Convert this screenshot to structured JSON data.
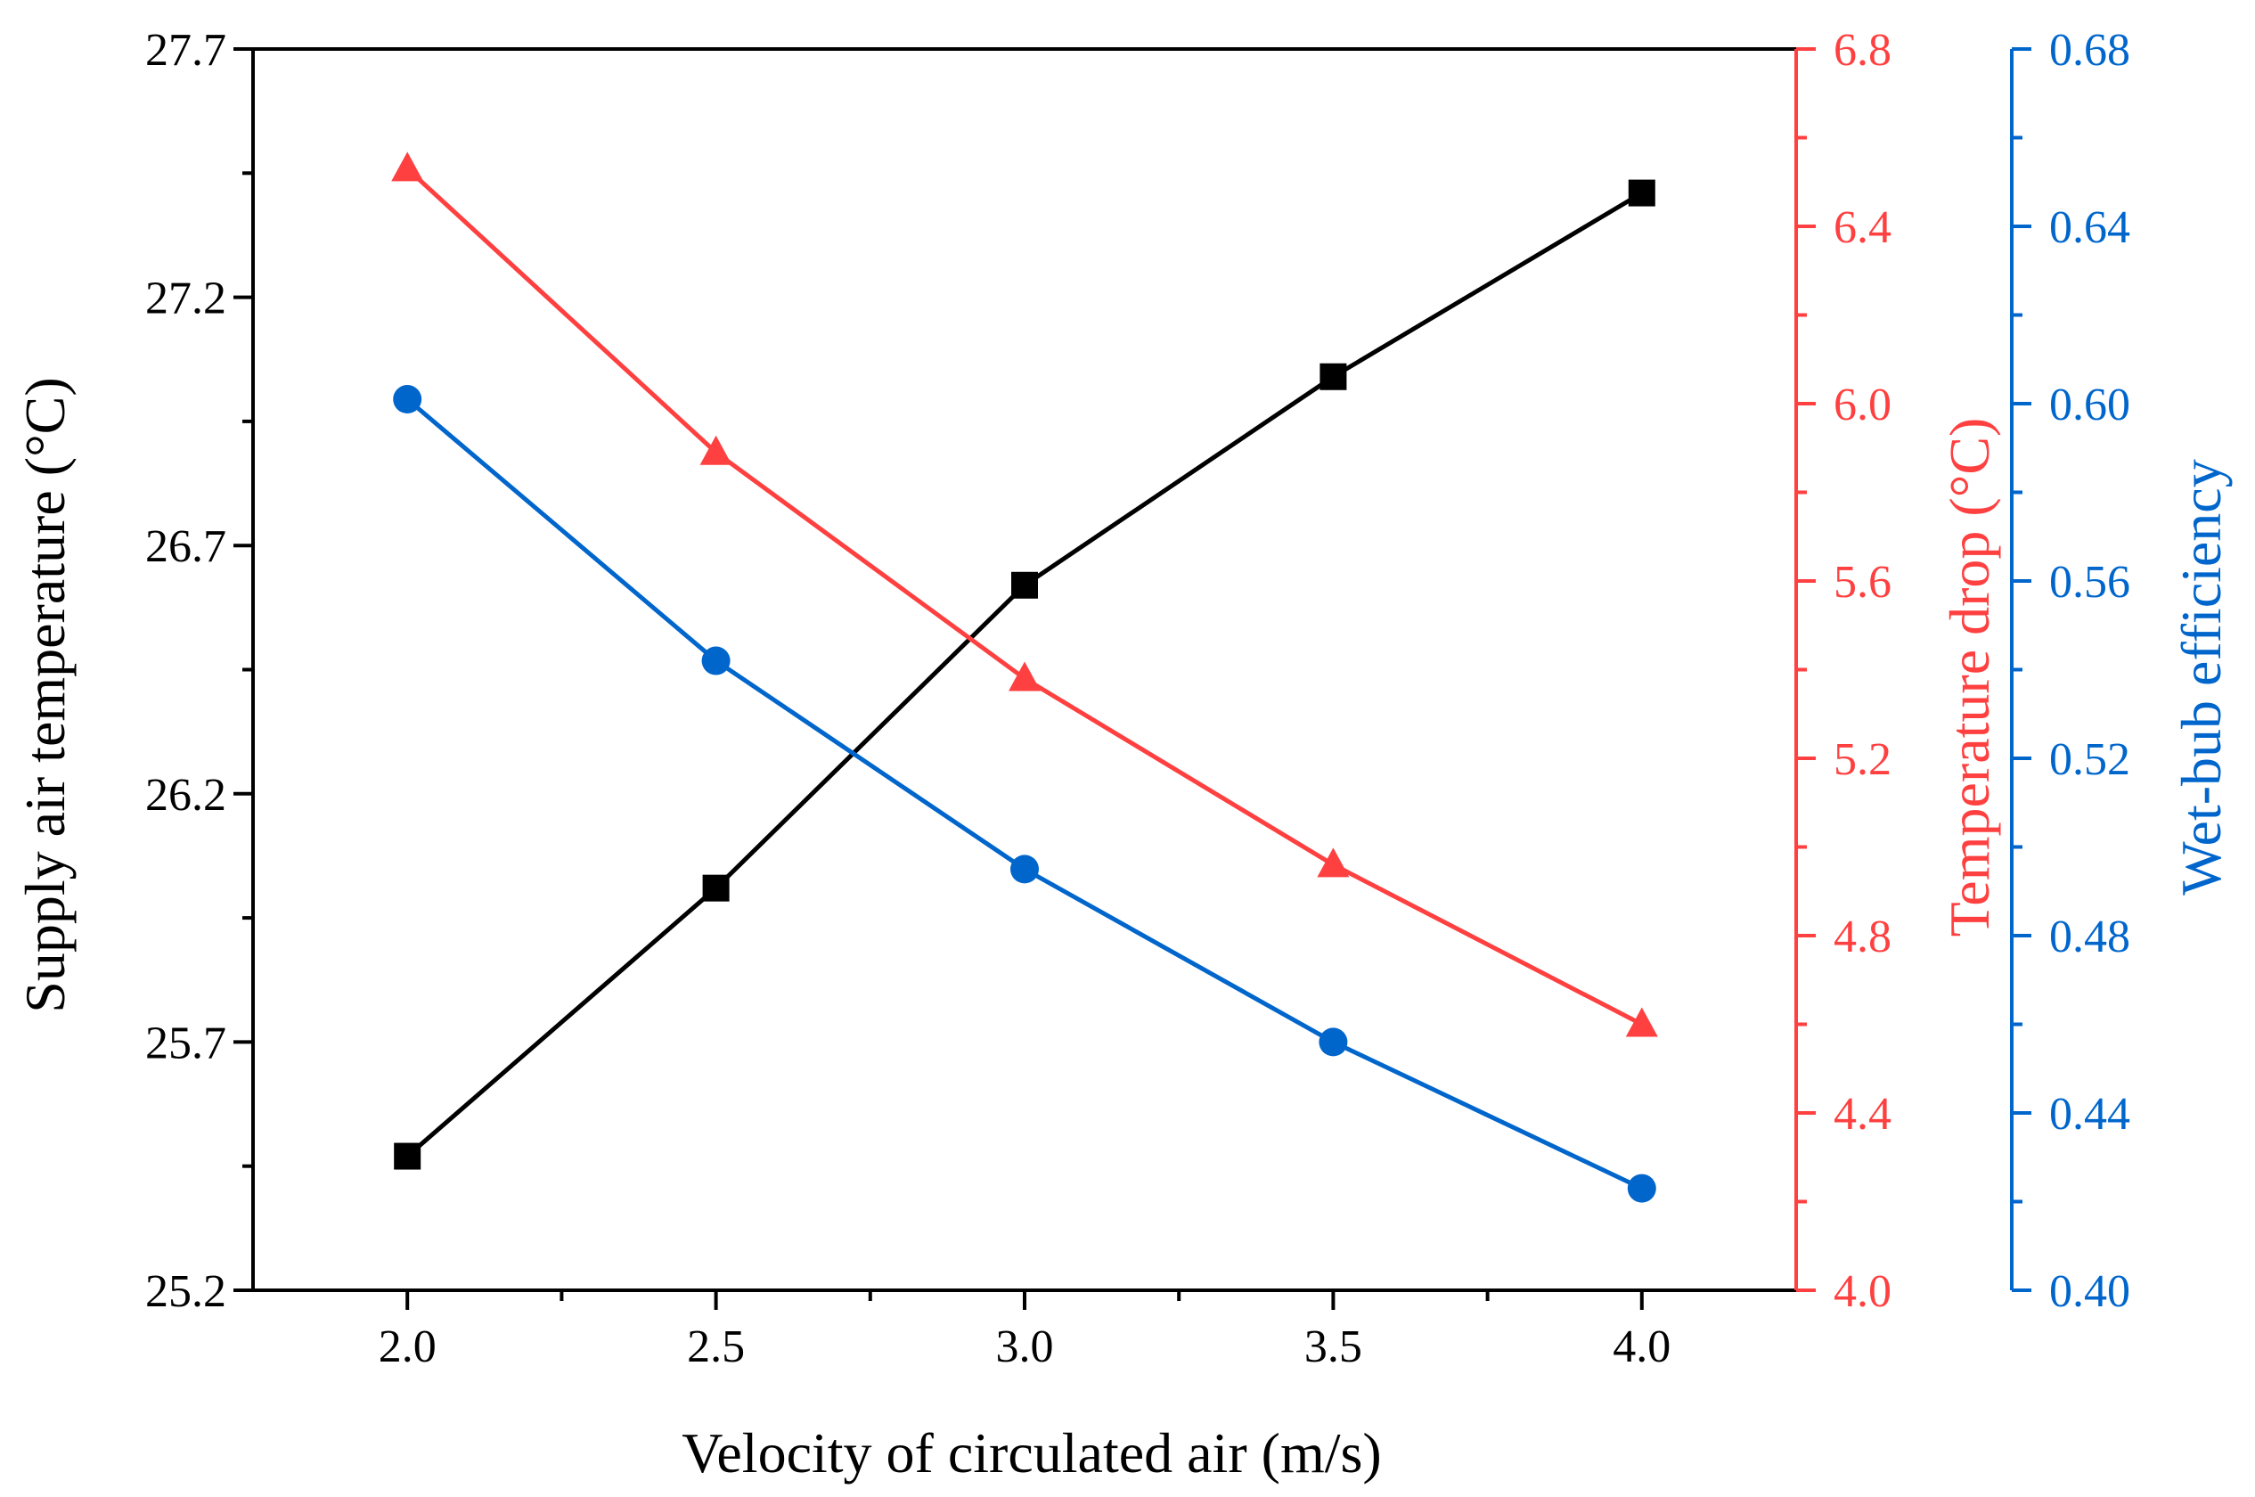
{
  "chart_data": {
    "type": "line",
    "xlabel": "Velocity of circulated air (m/s)",
    "x": [
      2.0,
      2.5,
      3.0,
      3.5,
      4.0
    ],
    "xlim": [
      1.75,
      4.25
    ],
    "xticks": [
      "2.0",
      "2.5",
      "3.0",
      "3.5",
      "4.0"
    ],
    "axes": {
      "left": {
        "label": "Supply air temperature (°C)",
        "ylim": [
          25.2,
          27.7
        ],
        "ticks": [
          "25.2",
          "25.7",
          "26.2",
          "26.7",
          "27.2",
          "27.7"
        ],
        "color": "#000000"
      },
      "right1": {
        "label": "Temperature drop (°C)",
        "ylim": [
          4.0,
          6.8
        ],
        "ticks": [
          "4.0",
          "4.4",
          "4.8",
          "5.2",
          "5.6",
          "6.0",
          "6.4",
          "6.8"
        ],
        "color": "#ff4040"
      },
      "right2": {
        "label": "Wet-bub efficiency",
        "ylim": [
          0.4,
          0.68
        ],
        "ticks": [
          "0.40",
          "0.44",
          "0.48",
          "0.52",
          "0.56",
          "0.60",
          "0.64",
          "0.68"
        ],
        "color": "#0066cc"
      }
    },
    "series": [
      {
        "axis": "left",
        "marker": "square",
        "color": "#000000",
        "values": [
          25.47,
          26.01,
          26.62,
          27.04,
          27.41
        ]
      },
      {
        "axis": "right1",
        "marker": "triangle",
        "color": "#ff4040",
        "values": [
          6.53,
          5.89,
          5.38,
          4.96,
          4.6
        ]
      },
      {
        "axis": "right2",
        "marker": "circle",
        "color": "#0066cc",
        "values": [
          0.601,
          0.542,
          0.495,
          0.456,
          0.423
        ]
      }
    ]
  }
}
